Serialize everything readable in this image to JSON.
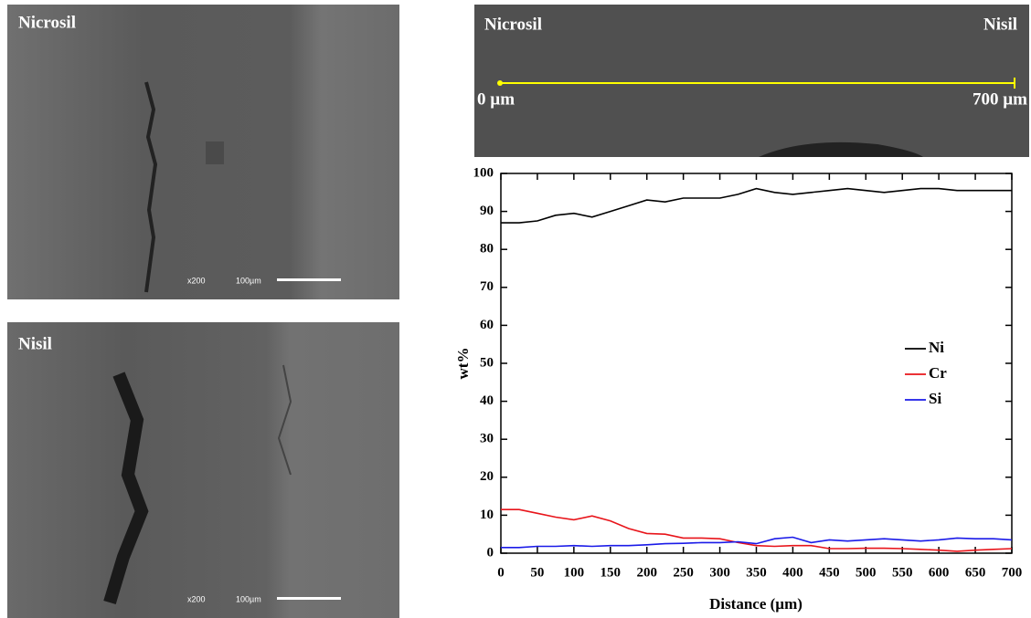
{
  "micrographs": [
    {
      "label": "Nicrosil",
      "magnification": "x200",
      "scale": "100µm"
    },
    {
      "label": "Nisil",
      "magnification": "x200",
      "scale": "100µm"
    }
  ],
  "line_scan": {
    "left_label": "Nicrosil",
    "right_label": "Nisil",
    "start": "0 µm",
    "end": "700 µm"
  },
  "chart_data": {
    "type": "line",
    "xlabel": "Distance (µm)",
    "ylabel": "wt%",
    "x": [
      0,
      25,
      50,
      75,
      100,
      125,
      150,
      175,
      200,
      225,
      250,
      275,
      300,
      325,
      350,
      375,
      400,
      425,
      450,
      475,
      500,
      525,
      550,
      575,
      600,
      625,
      650,
      675,
      700
    ],
    "series": [
      {
        "name": "Ni",
        "color": "#000000",
        "values": [
          87,
          87,
          87.5,
          89,
          89.5,
          88.5,
          90,
          91.5,
          93,
          92.5,
          93.5,
          93.5,
          93.5,
          94.5,
          96,
          95,
          94.5,
          95,
          95.5,
          96,
          95.5,
          95,
          95.5,
          96,
          96,
          95.5,
          95.5,
          95.5,
          95.5
        ]
      },
      {
        "name": "Cr",
        "color": "#e8141a",
        "values": [
          11.5,
          11.5,
          10.5,
          9.5,
          8.8,
          9.8,
          8.5,
          6.5,
          5.2,
          5,
          4,
          4,
          3.8,
          2.8,
          2,
          1.8,
          2,
          2,
          1.2,
          1.2,
          1.3,
          1.3,
          1.2,
          1,
          0.8,
          0.5,
          0.8,
          1,
          1.2
        ]
      },
      {
        "name": "Si",
        "color": "#1a1ae8",
        "values": [
          1.5,
          1.5,
          1.8,
          1.8,
          2,
          1.8,
          2,
          2,
          2.2,
          2.5,
          2.6,
          2.8,
          2.8,
          3,
          2.5,
          3.8,
          4.2,
          2.8,
          3.5,
          3.2,
          3.5,
          3.8,
          3.5,
          3.2,
          3.5,
          4,
          3.8,
          3.8,
          3.5
        ]
      }
    ],
    "xlim": [
      0,
      700
    ],
    "ylim": [
      0,
      100
    ],
    "xticks": [
      0,
      50,
      100,
      150,
      200,
      250,
      300,
      350,
      400,
      450,
      500,
      550,
      600,
      650,
      700
    ],
    "yticks": [
      0,
      10,
      20,
      30,
      40,
      50,
      60,
      70,
      80,
      90,
      100
    ],
    "legend": "right"
  }
}
